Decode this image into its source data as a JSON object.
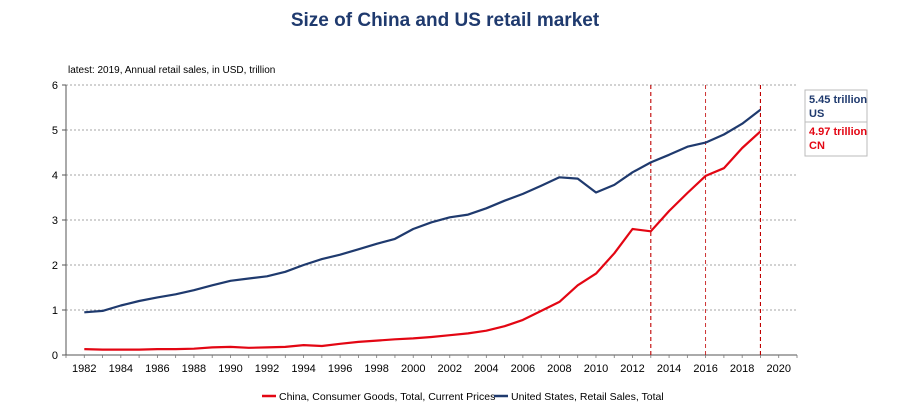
{
  "chart_data": {
    "type": "line",
    "title": "Size of China and US retail market",
    "subtitle": "latest: 2019, Annual retail sales, in USD, trillion",
    "xlabel": "",
    "ylabel": "",
    "xlim": [
      1981,
      2021
    ],
    "ylim": [
      0,
      6
    ],
    "grid": true,
    "x_ticks": [
      "1982",
      "1984",
      "1986",
      "1988",
      "1990",
      "1992",
      "1994",
      "1996",
      "1998",
      "2000",
      "2002",
      "2004",
      "2006",
      "2008",
      "2010",
      "2012",
      "2014",
      "2016",
      "2018",
      "2020"
    ],
    "y_ticks": [
      "0",
      "1",
      "2",
      "3",
      "4",
      "5",
      "6"
    ],
    "legend_position": "bottom",
    "vertical_markers": [
      2013,
      2016,
      2019
    ],
    "series": [
      {
        "name": "China, Consumer Goods, Total, Current Prices",
        "color": "#e30613",
        "x": [
          1982,
          1983,
          1984,
          1985,
          1986,
          1987,
          1988,
          1989,
          1990,
          1991,
          1992,
          1993,
          1994,
          1995,
          1996,
          1997,
          1998,
          1999,
          2000,
          2001,
          2002,
          2003,
          2004,
          2005,
          2006,
          2007,
          2008,
          2009,
          2010,
          2011,
          2012,
          2013,
          2014,
          2015,
          2016,
          2017,
          2018,
          2019
        ],
        "values": [
          0.13,
          0.12,
          0.12,
          0.12,
          0.13,
          0.13,
          0.14,
          0.17,
          0.18,
          0.16,
          0.17,
          0.18,
          0.22,
          0.2,
          0.25,
          0.29,
          0.32,
          0.35,
          0.37,
          0.4,
          0.44,
          0.48,
          0.54,
          0.64,
          0.78,
          0.98,
          1.18,
          1.55,
          1.81,
          2.26,
          2.8,
          2.75,
          3.2,
          3.6,
          3.98,
          4.15,
          4.6,
          4.97
        ]
      },
      {
        "name": "United States, Retail Sales, Total",
        "color": "#1f3a6e",
        "x": [
          1982,
          1983,
          1984,
          1985,
          1986,
          1987,
          1988,
          1989,
          1990,
          1991,
          1992,
          1993,
          1994,
          1995,
          1996,
          1997,
          1998,
          1999,
          2000,
          2001,
          2002,
          2003,
          2004,
          2005,
          2006,
          2007,
          2008,
          2009,
          2010,
          2011,
          2012,
          2013,
          2014,
          2015,
          2016,
          2017,
          2018,
          2019
        ],
        "values": [
          0.95,
          0.98,
          1.1,
          1.2,
          1.28,
          1.35,
          1.44,
          1.55,
          1.65,
          1.7,
          1.75,
          1.85,
          2.0,
          2.13,
          2.23,
          2.35,
          2.47,
          2.58,
          2.8,
          2.95,
          3.06,
          3.12,
          3.26,
          3.43,
          3.58,
          3.76,
          3.95,
          3.92,
          3.61,
          3.78,
          4.06,
          4.28,
          4.45,
          4.63,
          4.72,
          4.9,
          5.14,
          5.45
        ]
      }
    ]
  },
  "annotations": [
    {
      "value_label": "5.45 trillion",
      "country": "US",
      "color": "#1f3a6e"
    },
    {
      "value_label": "4.97 trillion",
      "country": "CN",
      "color": "#e30613"
    }
  ]
}
